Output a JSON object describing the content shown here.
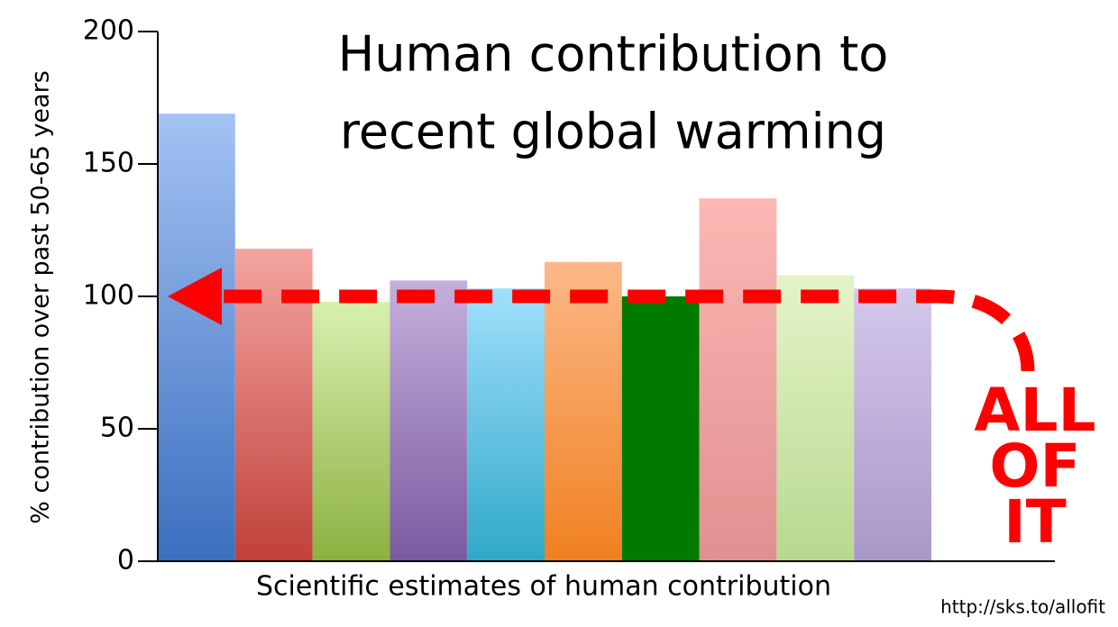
{
  "chart_data": {
    "type": "bar",
    "title": [
      "Human contribution to",
      "recent global warming"
    ],
    "y_label": "% contribution over past 50-65 years",
    "x_label": "Scientific estimates of human contribution",
    "annotation": [
      "ALL",
      "OF",
      "IT"
    ],
    "source": "http://sks.to/allofit",
    "categories": [
      null,
      null,
      null,
      null,
      null,
      null,
      null,
      null,
      null,
      null
    ],
    "values": [
      169,
      118,
      98,
      106,
      103,
      113,
      100,
      137,
      108,
      103
    ],
    "colors": [
      "#3a6fbf",
      "#c0403a",
      "#8cb040",
      "#7a5aa0",
      "#30a8c8",
      "#f08020",
      "#007a00",
      "#e09090",
      "#b8d890",
      "#a898c8"
    ],
    "top_colors": [
      "#a4c2f4",
      "#f4a4a0",
      "#d8f0b0",
      "#c4b0dc",
      "#a0e0fc",
      "#fcb888",
      "#007a00",
      "#fcb8b4",
      "#e4f4c8",
      "#d4c8ec"
    ],
    "arrow_value": 100,
    "arrow_color": "#ff0000",
    "ylim": [
      0,
      200
    ],
    "yticks": [
      0,
      50,
      100,
      150,
      200
    ]
  }
}
